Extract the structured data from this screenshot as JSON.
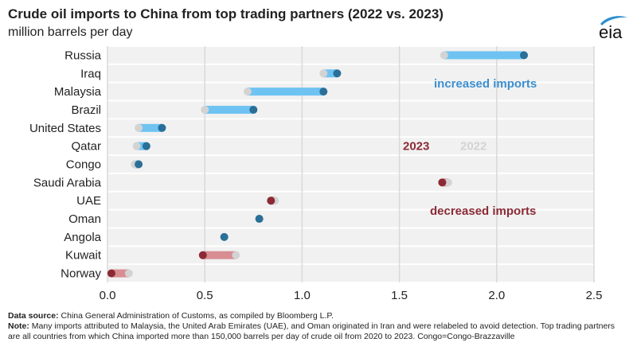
{
  "header": {
    "title": "Crude oil imports to China from top trading partners (2022 vs. 2023)",
    "subtitle": "million barrels per day",
    "logo_text": "eia"
  },
  "footer": {
    "source_label": "Data source:",
    "source_text": "China General Administration of Customs, as compiled by Bloomberg L.P.",
    "note_label": "Note:",
    "note_text": "Many imports attributed to Malaysia, the United Arab Emirates (UAE), and Oman originated in Iran and were relabeled to avoid detection. Top trading partners are all countries from which China imported more than 150,000 barrels per day of crude oil from 2020 to 2023. Congo=Congo-Brazzaville"
  },
  "colors": {
    "increase_dot": "#2a6f97",
    "increase_bar": "#6ec3f2",
    "decrease_dot": "#8b2a35",
    "decrease_bar": "#d88d93",
    "dot_2022": "#d3d3d3",
    "grid": "#d9d9d9",
    "band": "#f1f1f1",
    "increase_label": "#3b8fd0",
    "decrease_label": "#8b2a35"
  },
  "chart_data": {
    "type": "dumbbell",
    "xlim": [
      0,
      2.5
    ],
    "xticks": [
      "0.0",
      "0.5",
      "1.0",
      "1.5",
      "2.0",
      "2.5"
    ],
    "grid": true,
    "categories": [
      "Russia",
      "Iraq",
      "Malaysia",
      "Brazil",
      "United States",
      "Qatar",
      "Congo",
      "Saudi Arabia",
      "UAE",
      "Oman",
      "Angola",
      "Kuwait",
      "Norway"
    ],
    "series": [
      {
        "name": "2022",
        "values": [
          1.73,
          1.11,
          0.72,
          0.5,
          0.16,
          0.15,
          0.14,
          1.75,
          0.86,
          0.78,
          0.6,
          0.66,
          0.11
        ]
      },
      {
        "name": "2023",
        "values": [
          2.14,
          1.18,
          1.11,
          0.75,
          0.28,
          0.2,
          0.16,
          1.72,
          0.84,
          0.78,
          0.6,
          0.49,
          0.02
        ]
      }
    ],
    "legend": {
      "label_2023": "2023",
      "label_2022": "2022",
      "increased": "increased imports",
      "decreased": "decreased imports"
    }
  }
}
